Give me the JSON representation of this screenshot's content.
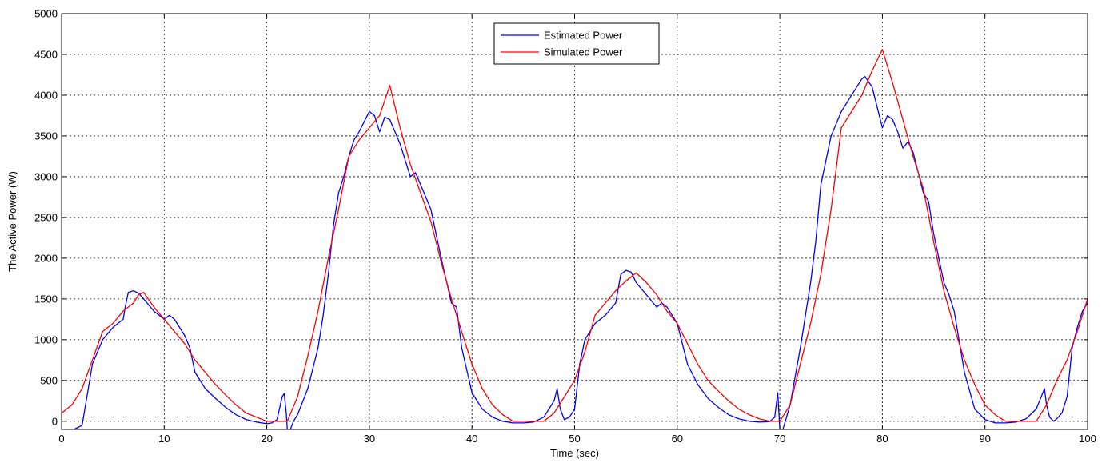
{
  "chart_data": {
    "type": "line",
    "title": "",
    "xlabel": "Time (sec)",
    "ylabel": "The Active Power (W)",
    "xlim": [
      0,
      100
    ],
    "ylim": [
      -100,
      5000
    ],
    "xticks": [
      0,
      10,
      20,
      30,
      40,
      50,
      60,
      70,
      80,
      90,
      100
    ],
    "yticks": [
      0,
      500,
      1000,
      1500,
      2000,
      2500,
      3000,
      3500,
      4000,
      4500,
      5000
    ],
    "grid": true,
    "legend_position": "top-center",
    "series": [
      {
        "name": "Estimated Power",
        "color": "#0000ff",
        "x": [
          1.2,
          2.0,
          3.0,
          4.0,
          5.0,
          6.0,
          6.2,
          6.5,
          7.0,
          7.5,
          8.0,
          9.0,
          10.0,
          10.5,
          11.0,
          12.0,
          12.5,
          13.0,
          14.0,
          15.0,
          16.0,
          17.0,
          18.0,
          19.0,
          20.0,
          20.5,
          21.0,
          21.5,
          21.7,
          21.9,
          22.0,
          22.3,
          22.6,
          23.0,
          24.0,
          25.0,
          25.5,
          26.0,
          26.5,
          27.0,
          27.5,
          28.0,
          28.5,
          29.0,
          30.0,
          30.5,
          31.0,
          31.5,
          32.0,
          33.0,
          34.0,
          34.5,
          35.0,
          35.5,
          36.0,
          37.0,
          38.0,
          38.5,
          39.0,
          40.0,
          41.0,
          42.0,
          43.0,
          44.0,
          45.0,
          46.0,
          47.0,
          48.0,
          48.3,
          48.6,
          49.0,
          49.5,
          50.0,
          50.5,
          51.0,
          52.0,
          53.0,
          54.0,
          54.5,
          55.0,
          55.5,
          56.0,
          57.0,
          58.0,
          58.5,
          59.0,
          60.0,
          61.0,
          62.0,
          63.0,
          64.0,
          65.0,
          66.0,
          67.0,
          68.0,
          69.0,
          69.5,
          69.8,
          70.0,
          70.3,
          71.0,
          72.0,
          73.0,
          73.5,
          74.0,
          75.0,
          76.0,
          77.0,
          78.0,
          78.3,
          79.0,
          79.5,
          80.0,
          80.5,
          81.0,
          81.5,
          82.0,
          82.5,
          83.0,
          84.0,
          84.5,
          85.0,
          86.0,
          86.5,
          87.0,
          88.0,
          89.0,
          90.0,
          91.0,
          92.0,
          93.0,
          94.0,
          95.0,
          95.8,
          96.0,
          96.3,
          96.7,
          97.0,
          97.5,
          98.0,
          98.5,
          99.0,
          99.5,
          100.0
        ],
        "y": [
          -100,
          -50,
          700,
          1000,
          1150,
          1250,
          1400,
          1580,
          1600,
          1570,
          1500,
          1350,
          1250,
          1300,
          1250,
          1050,
          900,
          600,
          400,
          280,
          170,
          80,
          20,
          -10,
          -30,
          -20,
          20,
          300,
          340,
          100,
          -100,
          -100,
          0,
          80,
          400,
          900,
          1300,
          1800,
          2400,
          2800,
          3000,
          3250,
          3450,
          3550,
          3800,
          3750,
          3550,
          3730,
          3700,
          3400,
          3000,
          3050,
          2900,
          2750,
          2600,
          2000,
          1450,
          1400,
          900,
          350,
          150,
          50,
          0,
          -20,
          -20,
          -10,
          50,
          250,
          400,
          150,
          20,
          50,
          150,
          700,
          1000,
          1200,
          1300,
          1450,
          1800,
          1850,
          1830,
          1700,
          1550,
          1400,
          1450,
          1400,
          1200,
          700,
          450,
          280,
          170,
          80,
          30,
          0,
          -10,
          -5,
          50,
          350,
          -100,
          -100,
          200,
          900,
          1700,
          2200,
          2900,
          3500,
          3800,
          4000,
          4200,
          4230,
          4100,
          3850,
          3600,
          3750,
          3700,
          3550,
          3350,
          3430,
          3300,
          2800,
          2700,
          2300,
          1700,
          1550,
          1350,
          600,
          150,
          20,
          -20,
          -20,
          -10,
          30,
          150,
          400,
          200,
          50,
          0,
          30,
          100,
          300,
          900,
          1150,
          1350,
          1450
        ]
      },
      {
        "name": "Simulated Power",
        "color": "#ff0000",
        "x": [
          0,
          1.0,
          2.0,
          3.0,
          4.0,
          5.0,
          6.0,
          7.0,
          7.5,
          8.0,
          9.0,
          10.0,
          11.0,
          12.0,
          13.0,
          14.0,
          15.0,
          16.0,
          17.0,
          18.0,
          19.0,
          20.0,
          21.0,
          22.0,
          23.0,
          24.0,
          25.0,
          26.0,
          27.0,
          28.0,
          29.0,
          30.0,
          31.0,
          32.0,
          33.0,
          34.0,
          35.0,
          36.0,
          37.0,
          38.0,
          39.0,
          40.0,
          41.0,
          42.0,
          43.0,
          44.0,
          45.0,
          46.0,
          47.0,
          48.0,
          49.0,
          50.0,
          51.0,
          52.0,
          53.0,
          54.0,
          55.0,
          56.0,
          57.0,
          58.0,
          59.0,
          60.0,
          61.0,
          62.0,
          63.0,
          64.0,
          65.0,
          66.0,
          67.0,
          68.0,
          69.0,
          70.0,
          71.0,
          72.0,
          73.0,
          74.0,
          75.0,
          76.0,
          77.0,
          78.0,
          79.0,
          80.0,
          81.0,
          82.0,
          83.0,
          84.0,
          85.0,
          86.0,
          87.0,
          88.0,
          89.0,
          90.0,
          91.0,
          92.0,
          93.0,
          94.0,
          95.0,
          96.0,
          97.0,
          98.0,
          99.0,
          100.0
        ],
        "y": [
          100,
          200,
          400,
          750,
          1100,
          1200,
          1350,
          1450,
          1550,
          1580,
          1400,
          1250,
          1100,
          950,
          750,
          600,
          450,
          320,
          200,
          100,
          50,
          0,
          0,
          0,
          300,
          800,
          1350,
          2000,
          2600,
          3250,
          3450,
          3600,
          3750,
          4120,
          3600,
          3150,
          2800,
          2450,
          1950,
          1500,
          1100,
          700,
          400,
          200,
          80,
          0,
          0,
          0,
          0,
          100,
          300,
          500,
          850,
          1300,
          1450,
          1600,
          1720,
          1820,
          1700,
          1550,
          1350,
          1200,
          950,
          700,
          500,
          370,
          250,
          150,
          80,
          30,
          0,
          0,
          200,
          700,
          1200,
          1800,
          2600,
          3600,
          3800,
          4000,
          4300,
          4560,
          4150,
          3700,
          3250,
          2850,
          2200,
          1600,
          1150,
          750,
          450,
          200,
          80,
          0,
          0,
          0,
          0,
          200,
          500,
          750,
          1100,
          1500
        ]
      }
    ]
  }
}
